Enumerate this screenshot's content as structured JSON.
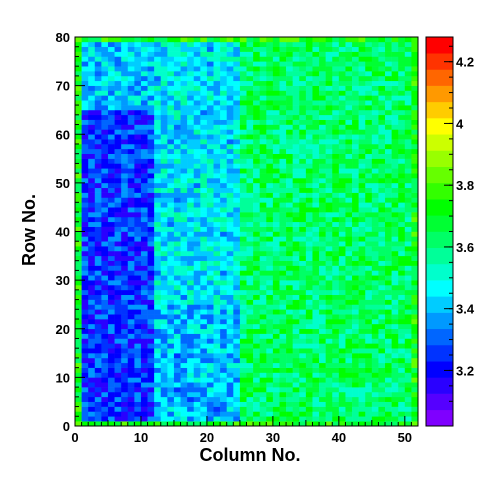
{
  "chart_data": {
    "type": "heatmap",
    "xlabel": "Column No.",
    "ylabel": "Row No.",
    "xlim": [
      0,
      52
    ],
    "ylim": [
      0,
      80
    ],
    "x_ticks": [
      0,
      10,
      20,
      30,
      40,
      50
    ],
    "y_ticks": [
      0,
      10,
      20,
      30,
      40,
      50,
      60,
      70,
      80
    ],
    "n_columns": 52,
    "n_rows": 80,
    "zlim": [
      3.02,
      4.28
    ],
    "colorbar_ticks": [
      3.2,
      3.4,
      3.6,
      3.8,
      4,
      4.2
    ],
    "colorbar_tick_labels": [
      "3.2",
      "3.4",
      "3.6",
      "3.8",
      "4",
      "4.2"
    ],
    "value_pattern": {
      "left_region_mean": 3.3,
      "middle_region_mean": 3.45,
      "right_region_mean": 3.62,
      "border_mean": 3.72,
      "noise_amplitude": 0.12
    },
    "palette": [
      "#7f00ff",
      "#5500ff",
      "#2a00ff",
      "#0000ff",
      "#0033ff",
      "#0066ff",
      "#0099ff",
      "#00ccff",
      "#00ffff",
      "#00ffcc",
      "#00ff99",
      "#00ff66",
      "#00ff33",
      "#00ff00",
      "#33ff00",
      "#66ff00",
      "#99ff00",
      "#ccff00",
      "#ffff00",
      "#ffcc00",
      "#ff9900",
      "#ff6600",
      "#ff3300",
      "#ff0000"
    ]
  }
}
